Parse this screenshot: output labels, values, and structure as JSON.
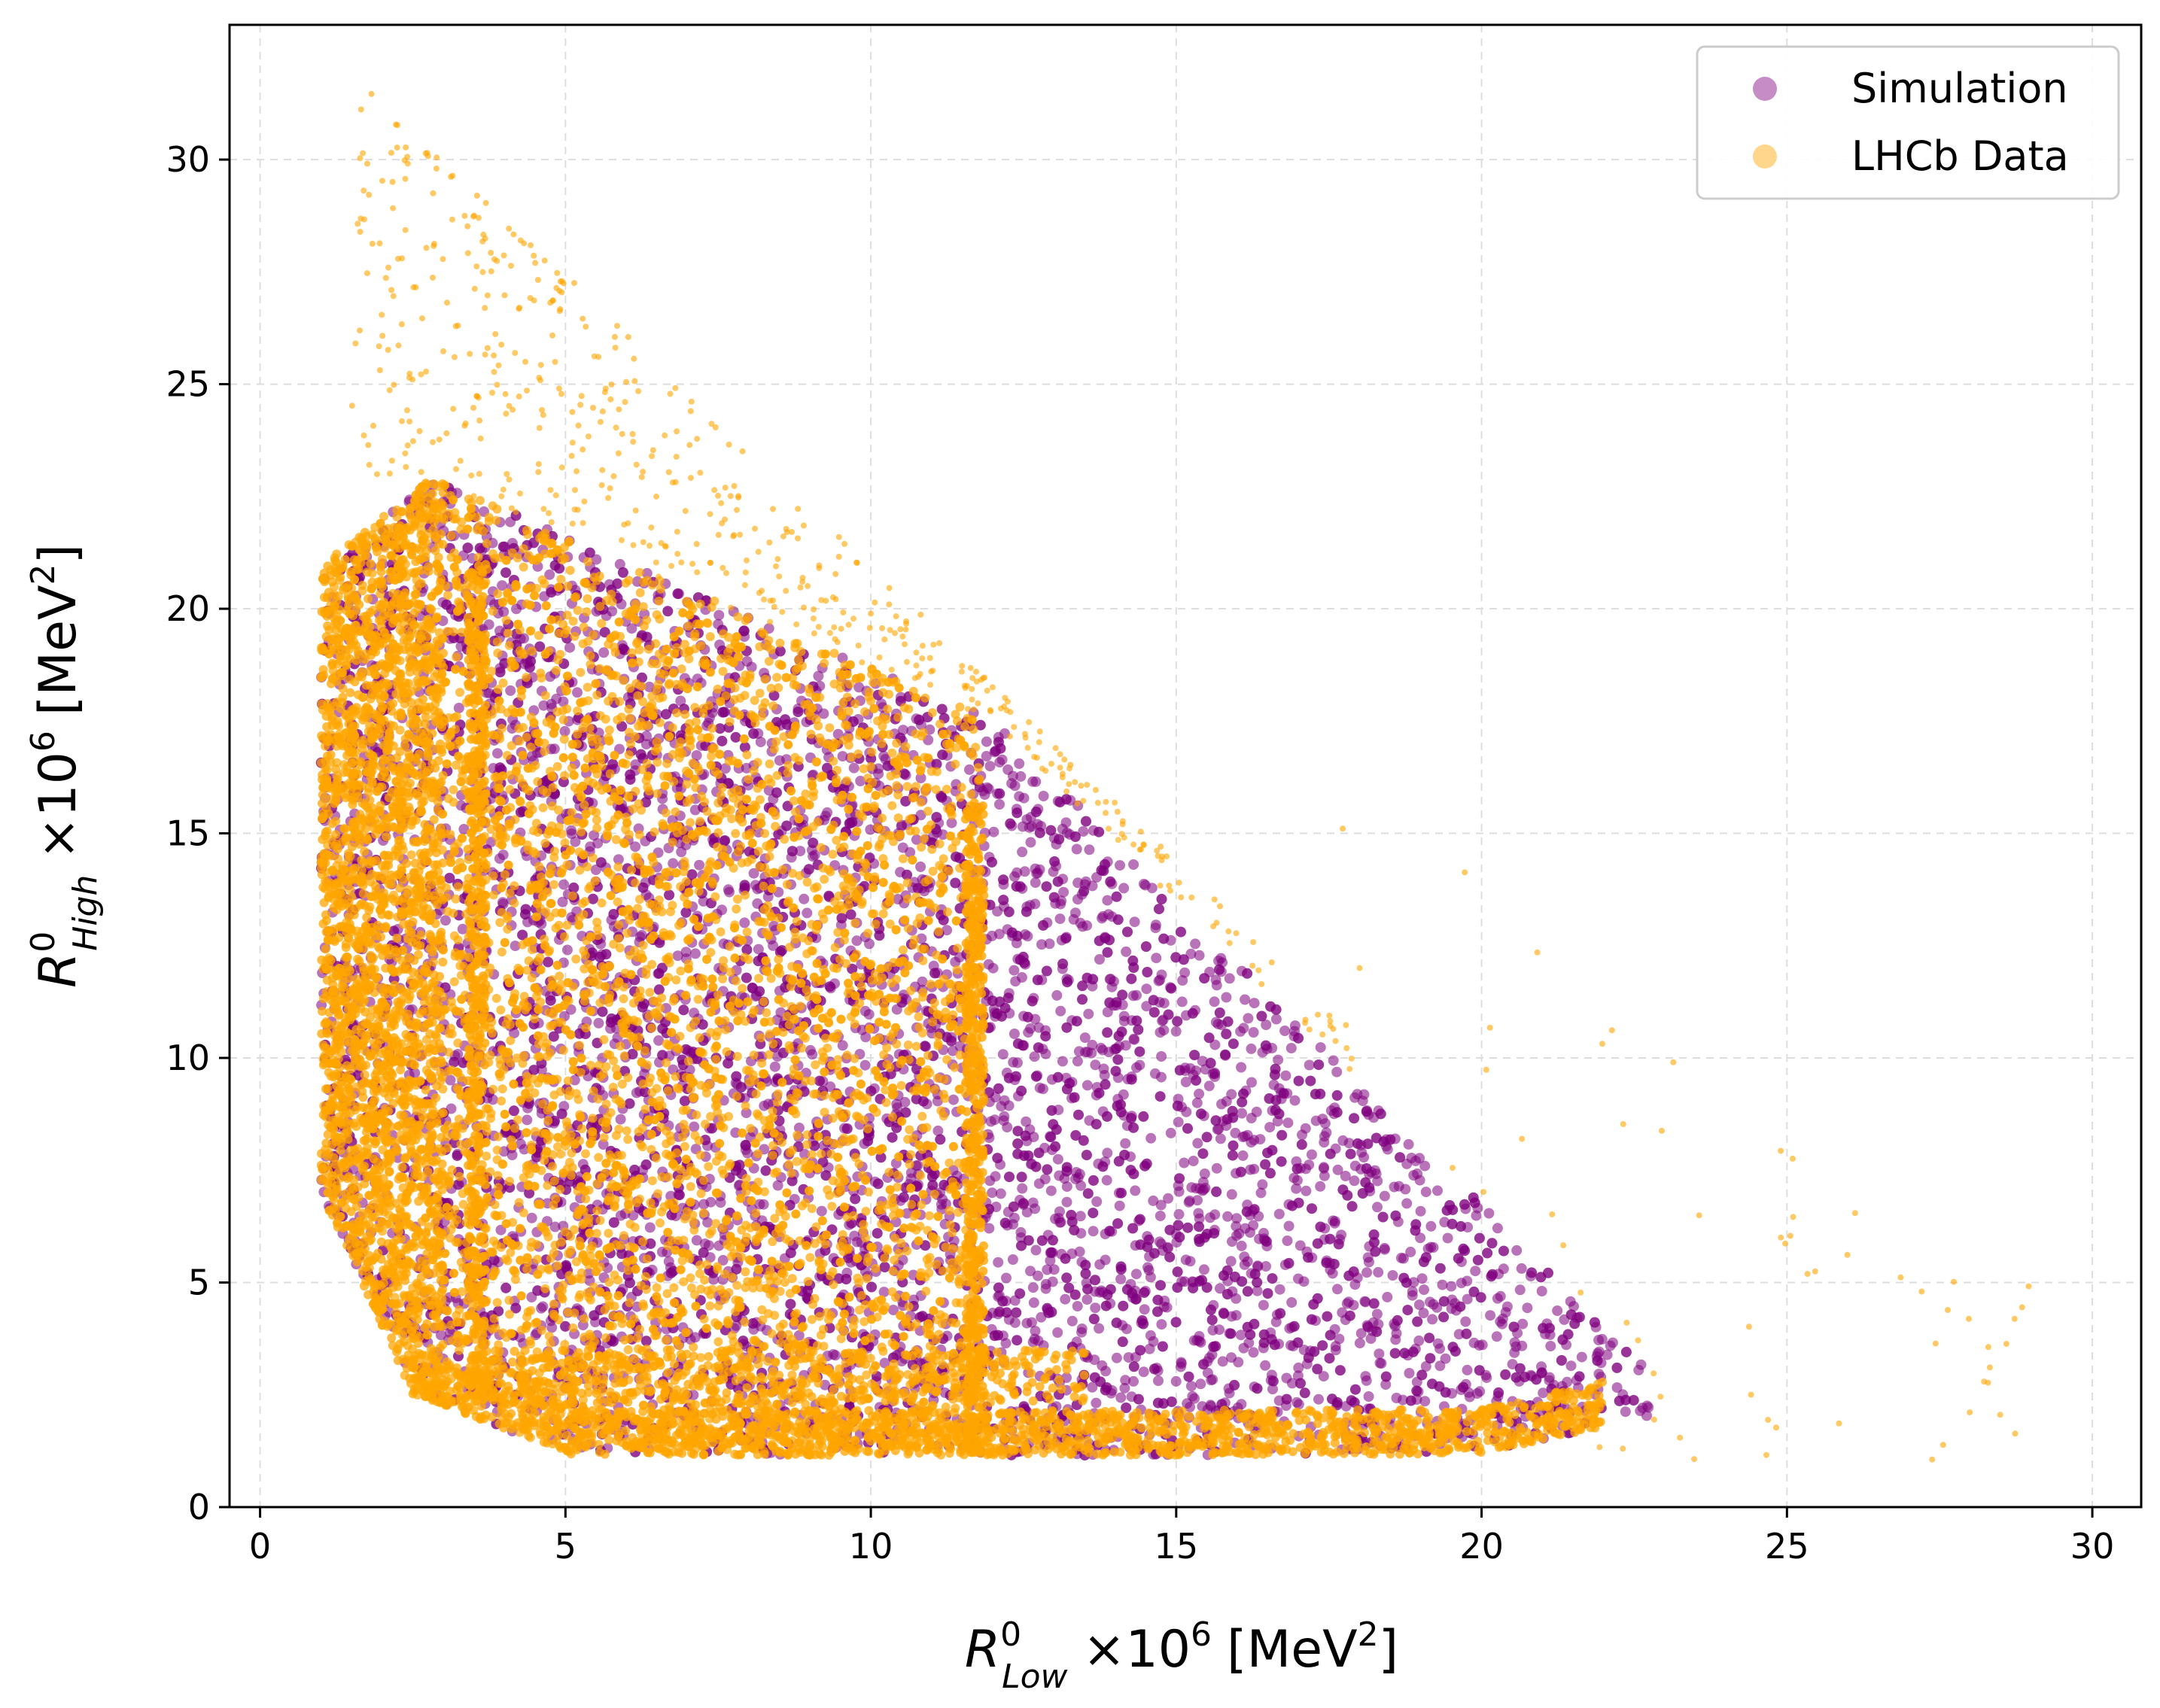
{
  "chart_data": {
    "type": "scatter",
    "title": "",
    "xlabel": {
      "symbol": "R",
      "superscript": "0",
      "subscript": "Low",
      "scale": "×10",
      "scale_exp": "6",
      "unit_open": "[MeV",
      "unit_exp": "2",
      "unit_close": "]"
    },
    "ylabel": {
      "symbol": "R",
      "superscript": "0",
      "subscript": "High",
      "scale": "×10",
      "scale_exp": "6",
      "unit_open": "[MeV",
      "unit_exp": "2",
      "unit_close": "]"
    },
    "xlim": [
      -0.5,
      30.8
    ],
    "ylim": [
      0,
      33.0
    ],
    "xticks": [
      0,
      5,
      10,
      15,
      20,
      25,
      30
    ],
    "yticks": [
      0,
      5,
      10,
      15,
      20,
      25,
      30
    ],
    "grid": true,
    "legend_position": "top-right",
    "series": [
      {
        "name": "Simulation",
        "color": "#800080",
        "region_corners": [
          [
            1.0,
            21.0
          ],
          [
            2.8,
            22.9
          ],
          [
            12.0,
            17.5
          ],
          [
            22.8,
            3.0
          ],
          [
            17.0,
            1.0
          ],
          [
            10.0,
            1.0
          ],
          [
            1.0,
            2.5
          ]
        ]
      },
      {
        "name": "LHCb Data",
        "color": "#FFA500",
        "region_corners": [
          [
            1.0,
            20.5
          ],
          [
            2.8,
            22.9
          ],
          [
            11.8,
            16.0
          ],
          [
            11.8,
            1.0
          ],
          [
            1.0,
            2.5
          ]
        ],
        "outlier_extent": [
          [
            1.5,
            32.0
          ],
          [
            29.0,
            5.0
          ]
        ]
      }
    ]
  }
}
